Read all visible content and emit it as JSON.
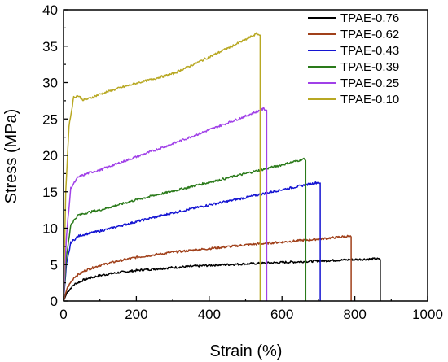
{
  "chart_data": {
    "type": "line",
    "title": "",
    "xlabel": "Strain (%)",
    "ylabel": "Stress (MPa)",
    "xlim": [
      0,
      1000
    ],
    "ylim": [
      0,
      40
    ],
    "xticks": [
      0,
      200,
      400,
      600,
      800,
      1000
    ],
    "yticks": [
      0,
      5,
      10,
      15,
      20,
      25,
      30,
      35,
      40
    ],
    "grid": false,
    "legend_position": "top-right",
    "series": [
      {
        "name": "TPAE-0.76",
        "color": "#000000",
        "x": [
          0,
          10,
          30,
          60,
          100,
          150,
          200,
          300,
          400,
          500,
          600,
          700,
          800,
          860,
          870,
          870
        ],
        "y": [
          0,
          1.2,
          2.3,
          3.0,
          3.5,
          3.9,
          4.2,
          4.6,
          4.9,
          5.1,
          5.3,
          5.5,
          5.7,
          5.8,
          5.7,
          0
        ]
      },
      {
        "name": "TPAE-0.62",
        "color": "#a0401a",
        "x": [
          0,
          10,
          30,
          60,
          100,
          150,
          200,
          300,
          400,
          500,
          600,
          700,
          780,
          790,
          790
        ],
        "y": [
          0,
          1.8,
          3.3,
          4.2,
          4.9,
          5.5,
          6.0,
          6.7,
          7.2,
          7.7,
          8.1,
          8.5,
          8.9,
          8.8,
          0
        ]
      },
      {
        "name": "TPAE-0.43",
        "color": "#1414d2",
        "x": [
          0,
          8,
          20,
          40,
          70,
          100,
          200,
          300,
          400,
          500,
          600,
          650,
          700,
          705,
          705
        ],
        "y": [
          0,
          5.0,
          8.0,
          8.9,
          9.3,
          9.6,
          10.9,
          12.1,
          13.2,
          14.2,
          15.3,
          15.8,
          16.3,
          16.2,
          0
        ]
      },
      {
        "name": "TPAE-0.39",
        "color": "#2a7a1a",
        "x": [
          0,
          8,
          20,
          40,
          70,
          100,
          200,
          300,
          400,
          500,
          600,
          660,
          665,
          665
        ],
        "y": [
          0,
          6.0,
          10.5,
          11.8,
          12.2,
          12.5,
          13.9,
          15.1,
          16.3,
          17.5,
          18.7,
          19.5,
          19.3,
          0
        ]
      },
      {
        "name": "TPAE-0.25",
        "color": "#a040e8",
        "x": [
          0,
          8,
          20,
          40,
          70,
          100,
          200,
          300,
          400,
          500,
          550,
          558,
          558
        ],
        "y": [
          0,
          9.0,
          15.5,
          17.0,
          17.6,
          18.0,
          19.8,
          21.6,
          23.5,
          25.4,
          26.4,
          26.2,
          0
        ]
      },
      {
        "name": "TPAE-0.10",
        "color": "#b8a823",
        "x": [
          0,
          6,
          15,
          28,
          40,
          55,
          70,
          100,
          150,
          200,
          300,
          400,
          500,
          530,
          540,
          540
        ],
        "y": [
          0,
          15.0,
          24.0,
          28.0,
          28.2,
          27.6,
          27.8,
          28.4,
          29.2,
          29.9,
          31.2,
          33.5,
          35.9,
          36.7,
          36.5,
          0
        ]
      }
    ]
  }
}
